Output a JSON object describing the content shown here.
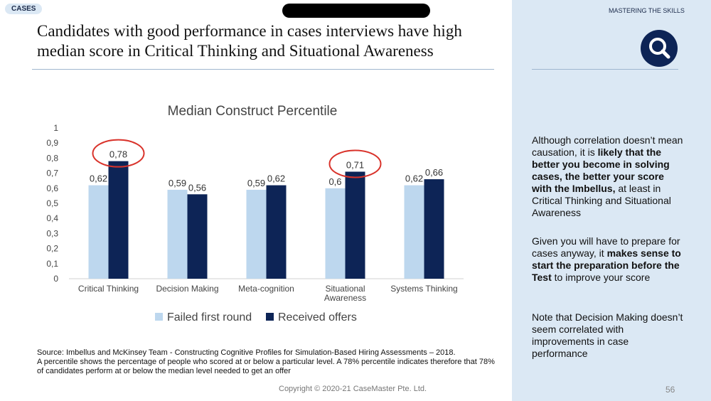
{
  "header": {
    "tag": "CASES"
  },
  "title": "Candidates with good performance in cases interviews have high median score in Critical Thinking and Situational Awareness",
  "chart_data": {
    "type": "bar",
    "title": "Median Construct Percentile",
    "categories": [
      "Critical Thinking",
      "Decision Making",
      "Meta-cognition",
      "Situational Awareness",
      "Systems Thinking"
    ],
    "category_lines": [
      [
        "Critical Thinking"
      ],
      [
        "Decision Making"
      ],
      [
        "Meta-cognition"
      ],
      [
        "Situational",
        "Awareness"
      ],
      [
        "Systems Thinking"
      ]
    ],
    "series": [
      {
        "name": "Failed first round",
        "values": [
          0.62,
          0.59,
          0.59,
          0.6,
          0.62
        ],
        "labels": [
          "0,62",
          "0,59",
          "0,59",
          "0,6",
          "0,62"
        ]
      },
      {
        "name": "Received offers",
        "values": [
          0.78,
          0.56,
          0.62,
          0.71,
          0.66
        ],
        "labels": [
          "0,78",
          "0,56",
          "0,62",
          "0,71",
          "0,66"
        ]
      }
    ],
    "ylim": [
      0,
      1
    ],
    "yticks": [
      "0",
      "0,1",
      "0,2",
      "0,3",
      "0,4",
      "0,5",
      "0,6",
      "0,7",
      "0,8",
      "0,9",
      "1"
    ],
    "legend": "bottom",
    "colors": [
      "#bdd7ee",
      "#0d2456"
    ],
    "highlight_color": "#d9332b",
    "highlighted_categories": [
      0,
      3
    ]
  },
  "source_text": "Source: Imbellus and McKinsey Team - Constructing Cognitive Profiles for Simulation-Based Hiring Assessments – 2018.",
  "note_text": "A percentile shows the percentage of people who scored at or below a particular level. A 78% percentile indicates therefore that 78% of candidates perform at or below the median level needed to get an offer",
  "copyright": "Copyright © 2020-21 CaseMaster Pte. Ltd.",
  "panel": {
    "label": "MASTERING THE SKILLS",
    "icon": "magnifier-icon",
    "p1": {
      "a": "Although correlation doesn’t mean causation, it is ",
      "b": "likely that the better you become in solving cases, the better your score with the Imbellus,",
      "c": " at least in Critical Thinking and Situational Awareness"
    },
    "p2": {
      "a": "Given you will have to prepare for cases anyway, it ",
      "b": "makes sense to start the preparation before the Test",
      "c": " to improve your score"
    },
    "p3": "Note that Decision Making doesn’t seem correlated with improvements in case performance",
    "page": "56"
  }
}
